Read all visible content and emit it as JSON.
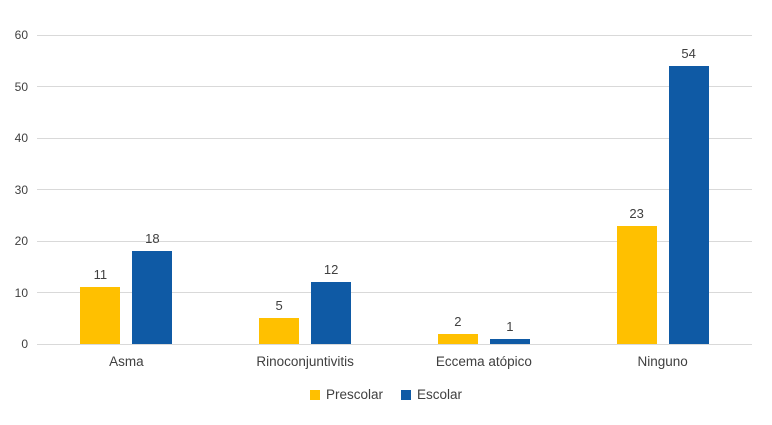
{
  "chart_data": {
    "type": "bar",
    "title": "",
    "xlabel": "",
    "ylabel": "",
    "categories": [
      "Asma",
      "Rinoconjuntivitis",
      "Eccema atópico",
      "Ninguno"
    ],
    "series": [
      {
        "name": "Prescolar",
        "color": "#FFC000",
        "values": [
          11,
          5,
          2,
          23
        ]
      },
      {
        "name": "Escolar",
        "color": "#0F5AA5",
        "values": [
          18,
          12,
          1,
          54
        ]
      }
    ],
    "ylim": [
      0,
      60
    ],
    "yticks": [
      0,
      10,
      20,
      30,
      40,
      50,
      60
    ],
    "grid": true,
    "data_labels": true,
    "legend_position": "bottom"
  },
  "colors": {
    "background": "#FFFFFF",
    "gridline": "#D9D9D9",
    "axis_text": "#404040",
    "prescolar": "#FFC000",
    "escolar": "#0F5AA5"
  }
}
